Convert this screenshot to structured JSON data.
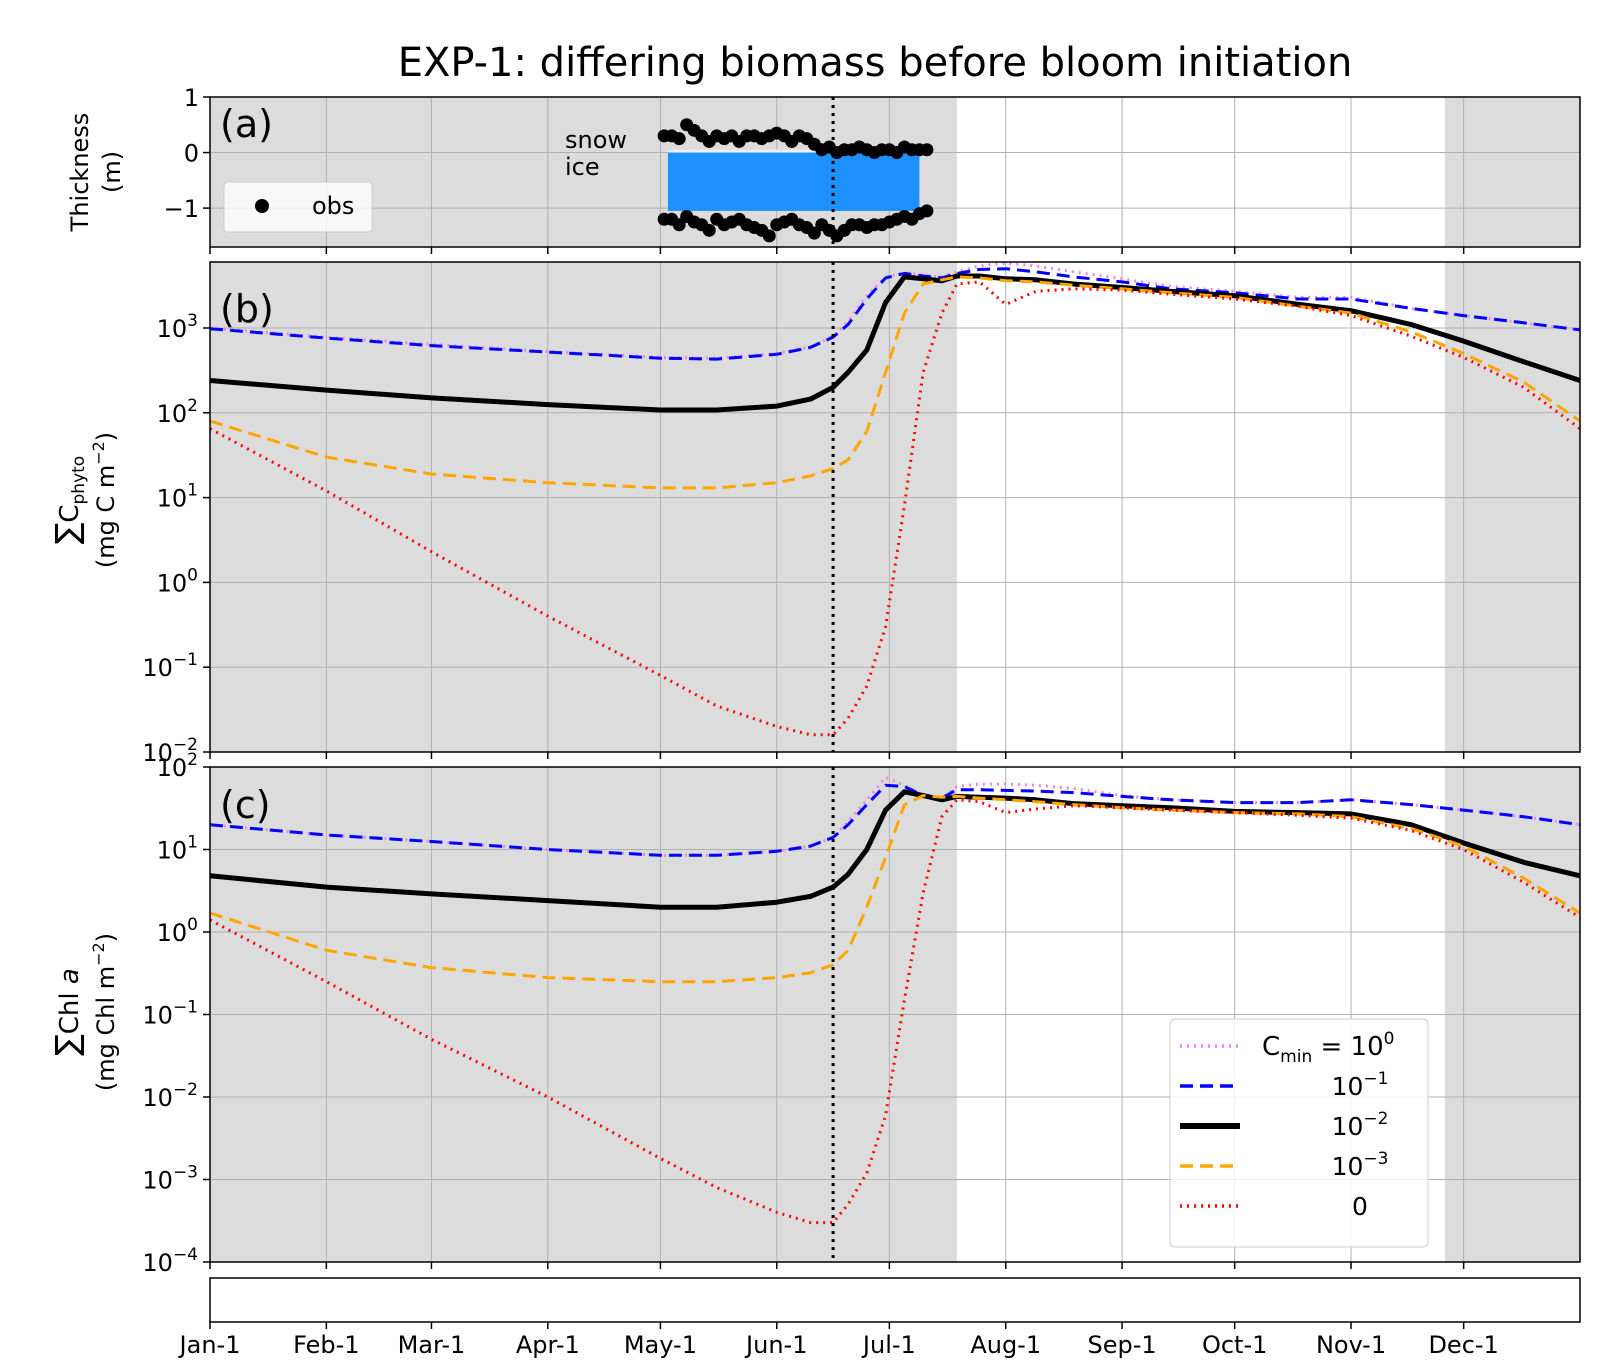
{
  "figure": {
    "title": "EXP-1: differing biomass before bloom initiation",
    "x_ticks": [
      "Jan-1",
      "Feb-1",
      "Mar-1",
      "Apr-1",
      "May-1",
      "Jun-1",
      "Jul-1",
      "Aug-1",
      "Sep-1",
      "Oct-1",
      "Nov-1",
      "Dec-1"
    ],
    "x_tick_days": [
      0,
      31,
      59,
      90,
      120,
      151,
      181,
      212,
      243,
      273,
      304,
      334
    ],
    "x_range_days": [
      0,
      365
    ],
    "event_line_day": 166,
    "shaded_periods_days": [
      [
        0,
        199
      ],
      [
        329,
        365
      ]
    ],
    "colors": {
      "shade": "#dcdcdc",
      "ice": "#1e90ff",
      "snow": "#f0f0f0",
      "grid": "#b0b0b0"
    }
  },
  "panel_a": {
    "label": "(a)",
    "ylabel_line1": "Thickness",
    "ylabel_line2": "(m)",
    "y_ticks": [
      "1",
      "0",
      "−1"
    ],
    "snow_label": "snow",
    "ice_label": "ice",
    "legend_obs": "obs"
  },
  "panel_b": {
    "label": "(b)",
    "ylabel_sum": "∑",
    "ylabel_c": "C",
    "ylabel_sub": "phyto",
    "ylabel_units": "(mg C m",
    "ylabel_units_sup": "−2",
    "ylabel_units_end": ")",
    "y_tick_exps": [
      "3",
      "2",
      "1",
      "0",
      "−1",
      "−2"
    ]
  },
  "panel_c": {
    "label": "(c)",
    "ylabel_sum": "∑",
    "ylabel_chl": "Chl ",
    "ylabel_a": "a",
    "ylabel_units": "(mg Chl m",
    "ylabel_units_sup": "−2",
    "ylabel_units_end": ")",
    "y_tick_exps": [
      "2",
      "1",
      "0",
      "−1",
      "−2",
      "−3",
      "−4"
    ]
  },
  "legend": {
    "title_c": "C",
    "title_sub": "min",
    "title_eq": " = 10",
    "title_sup": "0",
    "entries": [
      {
        "base": "",
        "exp": "",
        "color": "#ee82ee",
        "style": "dotted"
      },
      {
        "base": "10",
        "exp": "−1",
        "color": "#0000ff",
        "style": "dashed"
      },
      {
        "base": "10",
        "exp": "−2",
        "color": "#000000",
        "style": "solid"
      },
      {
        "base": "10",
        "exp": "−3",
        "color": "#ffa500",
        "style": "dashed"
      },
      {
        "base": "0",
        "exp": "",
        "color": "#ff0000",
        "style": "dotted"
      }
    ]
  },
  "chart_data": [
    {
      "type": "scatter",
      "panel": "a",
      "ylim": [
        -1.7,
        1
      ],
      "series": [
        {
          "name": "obs",
          "x": [
            121,
            123,
            125,
            127,
            129,
            131,
            133,
            135,
            137,
            139,
            141,
            143,
            145,
            147,
            149,
            151,
            153,
            155,
            157,
            159,
            161,
            163,
            165,
            167,
            169,
            171,
            173,
            175,
            177,
            179,
            181,
            183,
            185,
            187,
            189,
            191
          ],
          "y_top": [
            0.3,
            0.3,
            0.25,
            0.5,
            0.4,
            0.3,
            0.2,
            0.3,
            0.25,
            0.3,
            0.2,
            0.3,
            0.3,
            0.25,
            0.3,
            0.35,
            0.3,
            0.2,
            0.3,
            0.25,
            0.15,
            0.05,
            0.1,
            0.0,
            0.05,
            0.05,
            0.1,
            0.05,
            0.0,
            0.05,
            0.05,
            0.0,
            0.1,
            0.05,
            0.05,
            0.05
          ],
          "y_bottom": [
            -1.2,
            -1.2,
            -1.3,
            -1.15,
            -1.25,
            -1.3,
            -1.4,
            -1.2,
            -1.3,
            -1.25,
            -1.2,
            -1.3,
            -1.35,
            -1.4,
            -1.5,
            -1.3,
            -1.25,
            -1.2,
            -1.3,
            -1.35,
            -1.45,
            -1.3,
            -1.4,
            -1.5,
            -1.4,
            -1.3,
            -1.3,
            -1.35,
            -1.3,
            -1.3,
            -1.25,
            -1.2,
            -1.15,
            -1.2,
            -1.1,
            -1.05
          ]
        },
        {
          "name": "ice",
          "x_range": [
            122,
            189
          ],
          "thickness_top": 0.0,
          "thickness_bottom": -1.05
        },
        {
          "name": "snow",
          "x_range": [
            122,
            189
          ],
          "thickness_top": 0.05,
          "thickness_bottom": 0.0
        }
      ]
    },
    {
      "type": "line",
      "panel": "b",
      "yscale": "log",
      "ylim": [
        0.01,
        6000
      ],
      "x": [
        0,
        31,
        59,
        90,
        120,
        135,
        151,
        160,
        166,
        170,
        175,
        180,
        185,
        190,
        195,
        199,
        205,
        212,
        220,
        230,
        243,
        256,
        273,
        290,
        304,
        320,
        334,
        350,
        365
      ],
      "series": [
        {
          "name": "10⁰",
          "values": [
            1000,
            780,
            640,
            530,
            450,
            440,
            500,
            600,
            800,
            1200,
            2400,
            4000,
            4500,
            4200,
            4000,
            4600,
            5400,
            5800,
            5400,
            4600,
            3800,
            3100,
            2700,
            2300,
            2300,
            1700,
            1400,
            1150,
            950
          ]
        },
        {
          "name": "10⁻¹",
          "values": [
            980,
            760,
            620,
            520,
            440,
            430,
            490,
            590,
            780,
            1100,
            2200,
            3900,
            4400,
            4100,
            3900,
            4400,
            4900,
            5000,
            4600,
            4000,
            3500,
            2900,
            2600,
            2200,
            2200,
            1700,
            1400,
            1150,
            950
          ]
        },
        {
          "name": "10⁻²",
          "values": [
            240,
            185,
            150,
            125,
            108,
            108,
            120,
            145,
            200,
            300,
            550,
            2000,
            4000,
            3800,
            3600,
            4100,
            4100,
            3800,
            3700,
            3300,
            3000,
            2700,
            2400,
            1900,
            1600,
            1100,
            700,
            400,
            240
          ]
        },
        {
          "name": "10⁻³",
          "values": [
            80,
            30,
            19,
            15,
            13,
            13,
            15,
            18,
            22,
            28,
            60,
            300,
            1500,
            3300,
            3700,
            4000,
            3900,
            3600,
            3500,
            3200,
            2900,
            2600,
            2300,
            1800,
            1500,
            900,
            500,
            230,
            80
          ]
        },
        {
          "name": "0",
          "values": [
            65,
            12,
            2.3,
            0.4,
            0.08,
            0.035,
            0.02,
            0.016,
            0.016,
            0.025,
            0.06,
            0.3,
            8,
            300,
            1500,
            3300,
            3500,
            1900,
            2700,
            2900,
            2800,
            2500,
            2200,
            1800,
            1400,
            800,
            450,
            200,
            65
          ]
        }
      ]
    },
    {
      "type": "line",
      "panel": "c",
      "yscale": "log",
      "ylim": [
        0.0001,
        100
      ],
      "x": [
        0,
        31,
        59,
        90,
        120,
        135,
        151,
        160,
        166,
        170,
        175,
        180,
        185,
        190,
        195,
        199,
        205,
        212,
        220,
        230,
        243,
        256,
        273,
        290,
        304,
        320,
        334,
        350,
        365
      ],
      "series": [
        {
          "name": "10⁰",
          "values": [
            20,
            15,
            12.5,
            10,
            8.5,
            8.5,
            9.5,
            11,
            14,
            22,
            40,
            75,
            60,
            45,
            42,
            58,
            62,
            62,
            60,
            55,
            45,
            40,
            37,
            37,
            40,
            35,
            30,
            25,
            20
          ]
        },
        {
          "name": "10⁻¹",
          "values": [
            20,
            15,
            12.5,
            10,
            8.5,
            8.5,
            9.5,
            11,
            14,
            20,
            35,
            60,
            58,
            45,
            42,
            53,
            53,
            52,
            51,
            49,
            44,
            40,
            37,
            37,
            40,
            35,
            30,
            25,
            20
          ]
        },
        {
          "name": "10⁻²",
          "values": [
            4.8,
            3.5,
            2.9,
            2.4,
            2.0,
            2.0,
            2.3,
            2.7,
            3.5,
            5,
            10,
            30,
            50,
            45,
            40,
            44,
            43,
            42,
            40,
            36,
            34,
            32,
            29,
            28,
            27,
            20,
            12,
            7,
            4.8
          ]
        },
        {
          "name": "10⁻³",
          "values": [
            1.7,
            0.6,
            0.37,
            0.28,
            0.25,
            0.25,
            0.28,
            0.32,
            0.4,
            0.6,
            2,
            8,
            35,
            45,
            43,
            44,
            42,
            40,
            38,
            35,
            32,
            30,
            28,
            27,
            25,
            18,
            11,
            4.5,
            1.7
          ]
        },
        {
          "name": "0",
          "values": [
            1.4,
            0.25,
            0.05,
            0.01,
            0.0018,
            0.0008,
            0.0004,
            0.0003,
            0.0003,
            0.0005,
            0.0012,
            0.006,
            0.15,
            3,
            25,
            40,
            38,
            28,
            31,
            34,
            32,
            30,
            28,
            26,
            24,
            17,
            10,
            4,
            1.5
          ]
        }
      ]
    }
  ]
}
